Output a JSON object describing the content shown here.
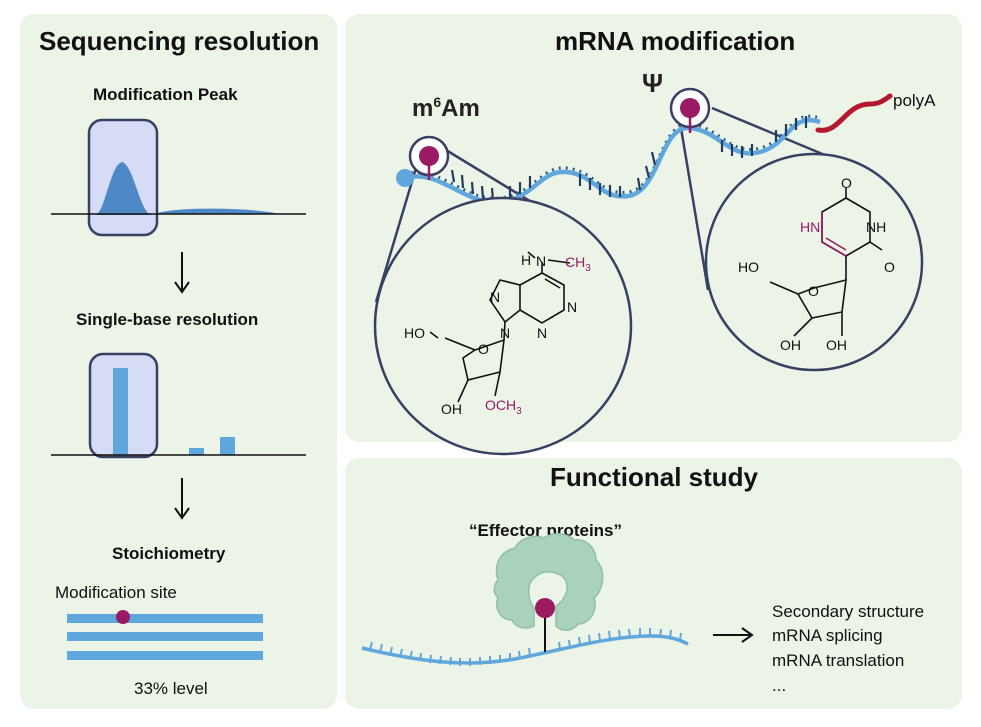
{
  "left_panel": {
    "title": "Sequencing resolution",
    "peak_label": "Modification Peak",
    "single_base_label": "Single-base resolution",
    "stoichiometry_label": "Stoichiometry",
    "mod_site_label": "Modification site",
    "level_label": "33% level"
  },
  "mrna_panel": {
    "title": "mRNA modification",
    "m6am_base": "m",
    "m6am_sup": "6",
    "m6am_rest": "Am",
    "psi_label": "Ψ",
    "polya_label": "polyA",
    "m6am_structure": {
      "h": "H",
      "n_amine": "N",
      "ch3_amine": "CH",
      "ch3_sub": "3",
      "ring_n": [
        "N",
        "N",
        "N",
        "N"
      ],
      "ho": "HO",
      "oh": "OH",
      "o_ring": "O",
      "och3": "OCH",
      "och3_sub": "3"
    },
    "psi_structure": {
      "o_top": "O",
      "o_right": "O",
      "hn": "HN",
      "nh": "NH",
      "ho": "HO",
      "oh1": "OH",
      "oh2": "OH",
      "o_ring": "O"
    }
  },
  "functional_panel": {
    "title": "Functional study",
    "effector_label": "“Effector proteins”",
    "outcomes": [
      "Secondary structure",
      "mRNA splicing",
      "mRNA translation",
      "..."
    ]
  },
  "colors": {
    "panel_bg": "#ebf4e6",
    "rna_blue": "#5fa7dc",
    "magenta": "#9a1a63",
    "navy": "#3a3f64",
    "polya_red": "#b4182f",
    "box_fill": "#d6dcf5",
    "protein_green": "#a9d2bd"
  }
}
